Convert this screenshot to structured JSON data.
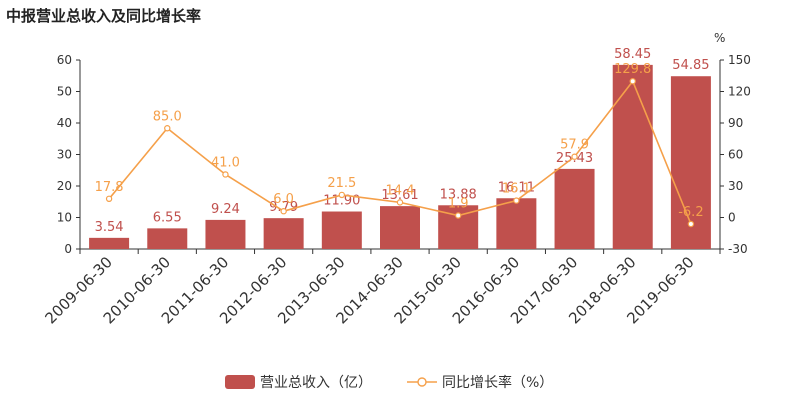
{
  "title": "中报营业总收入及同比增长率",
  "chart_data": {
    "type": "bar",
    "categories": [
      "2009-06-30",
      "2010-06-30",
      "2011-06-30",
      "2012-06-30",
      "2013-06-30",
      "2014-06-30",
      "2015-06-30",
      "2016-06-30",
      "2017-06-30",
      "2018-06-30",
      "2019-06-30"
    ],
    "series": [
      {
        "name": "营业总收入（亿）",
        "type": "bar",
        "axis": "left",
        "values": [
          3.54,
          6.55,
          9.24,
          9.79,
          11.9,
          13.61,
          13.88,
          16.11,
          25.43,
          58.45,
          54.85
        ],
        "labels": [
          "3.54",
          "6.55",
          "9.24",
          "9.79",
          "11.90",
          "13.61",
          "13.88",
          "16.11",
          "25.43",
          "58.45",
          "54.85"
        ]
      },
      {
        "name": "同比增长率（%）",
        "type": "line",
        "axis": "right",
        "values": [
          17.8,
          85.0,
          41.0,
          6.0,
          21.5,
          14.4,
          1.9,
          16.1,
          57.9,
          129.8,
          -6.2
        ],
        "labels": [
          "17.8",
          "85.0",
          "41.0",
          "6.0",
          "21.5",
          "14.4",
          "1.9",
          "16.1",
          "57.9",
          "129.8",
          "-6.2"
        ]
      }
    ],
    "y_left": {
      "min": 0,
      "max": 60,
      "ticks": [
        "0",
        "10",
        "20",
        "30",
        "40",
        "50",
        "60"
      ]
    },
    "y_right": {
      "min": -30,
      "max": 150,
      "ticks": [
        "-30",
        "0",
        "30",
        "60",
        "90",
        "120",
        "150"
      ],
      "unit": "%"
    },
    "legend_position": "bottom-center",
    "grid": false,
    "colors": {
      "bar": "#c0504d",
      "line": "#f5a04a",
      "axis": "#333333"
    }
  }
}
